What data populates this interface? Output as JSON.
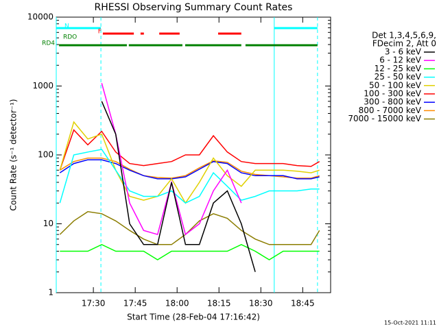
{
  "chart_data": {
    "type": "line",
    "title": "RHESSI Observing Summary Count Rates",
    "xlabel": "Start Time (28-Feb-04 17:16:42)",
    "ylabel": "Count Rate (s⁻¹ detector⁻¹)",
    "legend_header": [
      "Det 1,3,4,5,6,9,",
      "FDecim 2, Att 0"
    ],
    "footer": "15-Oct-2021 11:11",
    "log_scale_y": true,
    "xlim": [
      1036.7,
      1135
    ],
    "ylim": [
      1,
      10000
    ],
    "xticks": [
      {
        "value": 1050,
        "label": "17:30"
      },
      {
        "value": 1065,
        "label": "17:45"
      },
      {
        "value": 1080,
        "label": "18:00"
      },
      {
        "value": 1095,
        "label": "18:15"
      },
      {
        "value": 1110,
        "label": "18:30"
      },
      {
        "value": 1125,
        "label": "18:45"
      }
    ],
    "yticks": [
      1,
      10,
      100,
      1000,
      10000
    ],
    "x": [
      1038,
      1043,
      1048,
      1053,
      1058,
      1063,
      1068,
      1073,
      1078,
      1083,
      1088,
      1093,
      1098,
      1103,
      1108,
      1113,
      1118,
      1123,
      1128,
      1131
    ],
    "series": [
      {
        "name": "3 - 6 keV",
        "color": "#000000",
        "values": [
          null,
          null,
          null,
          600,
          200,
          10,
          5,
          5,
          40,
          5,
          5,
          20,
          30,
          10,
          2,
          null,
          null,
          null,
          null,
          null
        ]
      },
      {
        "name": "6 - 12 keV",
        "color": "#ff00ff",
        "values": [
          null,
          null,
          null,
          1100,
          200,
          20,
          8,
          7,
          40,
          7,
          10,
          30,
          60,
          20,
          null,
          null,
          null,
          null,
          null,
          null
        ]
      },
      {
        "name": "12 - 25 keV",
        "color": "#00ff00",
        "values": [
          4,
          4,
          4,
          5,
          4,
          4,
          4,
          3,
          4,
          4,
          4,
          4,
          4,
          5,
          4,
          3,
          4,
          4,
          4,
          4
        ]
      },
      {
        "name": "25 - 50 keV",
        "color": "#00ffff",
        "values": [
          20,
          100,
          110,
          120,
          60,
          30,
          25,
          25,
          30,
          20,
          25,
          55,
          35,
          22,
          25,
          30,
          30,
          30,
          32,
          32
        ]
      },
      {
        "name": "50 - 100 keV",
        "color": "#e0d000",
        "values": [
          60,
          300,
          170,
          200,
          60,
          25,
          22,
          25,
          45,
          20,
          40,
          90,
          50,
          35,
          60,
          60,
          60,
          58,
          55,
          60
        ]
      },
      {
        "name": "100 - 300 keV",
        "color": "#ff0000",
        "values": [
          60,
          230,
          140,
          220,
          110,
          75,
          70,
          75,
          80,
          100,
          100,
          190,
          110,
          80,
          75,
          75,
          75,
          70,
          68,
          80
        ]
      },
      {
        "name": "300 - 800 keV",
        "color": "#0000ff",
        "values": [
          55,
          75,
          85,
          85,
          75,
          60,
          50,
          45,
          45,
          48,
          62,
          80,
          75,
          55,
          50,
          50,
          50,
          45,
          45,
          48
        ]
      },
      {
        "name": "800 - 7000 keV",
        "color": "#ff8c00",
        "values": [
          60,
          80,
          90,
          90,
          80,
          62,
          50,
          47,
          46,
          50,
          65,
          82,
          78,
          58,
          52,
          50,
          48,
          46,
          46,
          50
        ]
      },
      {
        "name": "7000 - 15000 keV",
        "color": "#8b7d00",
        "values": [
          7,
          11,
          15,
          14,
          11,
          8,
          6,
          5,
          5,
          7,
          11,
          14,
          12,
          8,
          6,
          5,
          5,
          5,
          5,
          8
        ]
      }
    ],
    "flags": [
      {
        "label": "N",
        "color": "#00ffff",
        "intervals": [
          [
            1036.7,
            1052.7
          ],
          [
            1114.8,
            1130.3
          ]
        ]
      },
      {
        "label": "F",
        "color": "#ff0000",
        "intervals": [
          [
            1053.4,
            1064.5
          ],
          [
            1066.9,
            1068.1
          ],
          [
            1073.6,
            1080.9
          ],
          [
            1094.7,
            1103.0
          ]
        ]
      },
      {
        "label": "RDO",
        "color": "#008000",
        "intervals": []
      },
      {
        "label": "RD4",
        "color": "#008000",
        "intervals": [
          [
            1037.7,
            1062.0
          ],
          [
            1062.7,
            1081.9
          ],
          [
            1082.9,
            1103.0
          ],
          [
            1104.5,
            1130.3
          ]
        ]
      }
    ]
  }
}
